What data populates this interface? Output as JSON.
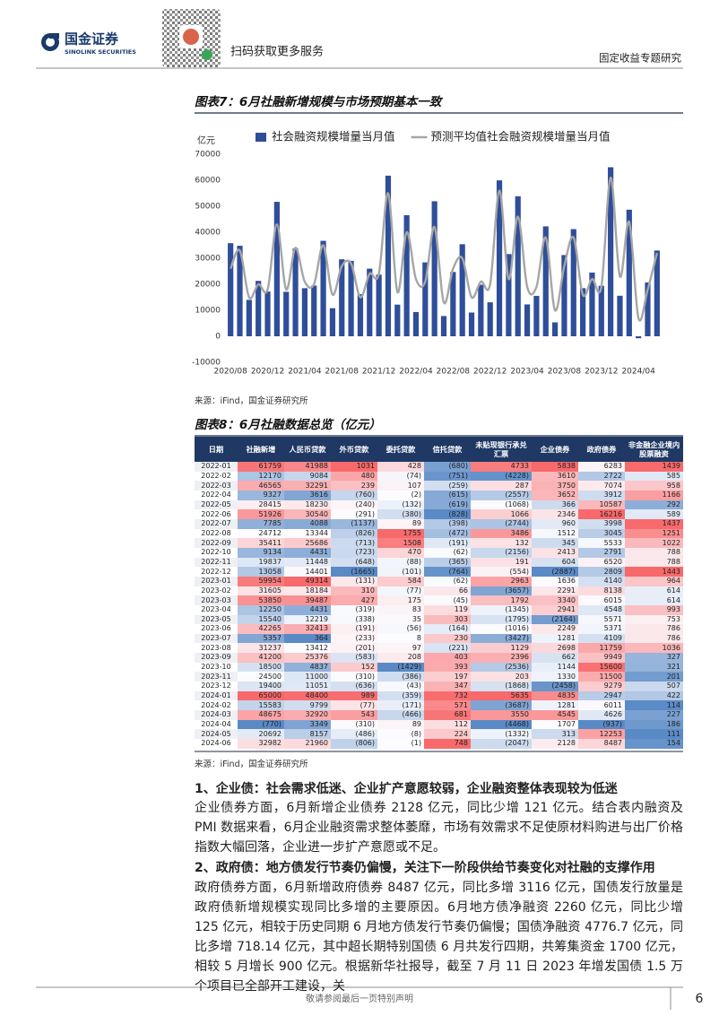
{
  "header": {
    "logo_cn": "国金证券",
    "logo_en": "SINOLINK SECURITIES",
    "qr_text": "扫码获取更多服务",
    "report_type": "固定收益专题研究"
  },
  "chart_data": {
    "type": "bar",
    "title": "图表7：6月社融新增规模与市场预期基本一致",
    "y_label": "亿元",
    "source": "来源：iFind，国金证券研究所",
    "categories": [
      "2020/08",
      null,
      null,
      null,
      "2020/12",
      null,
      null,
      null,
      "2021/04",
      null,
      null,
      null,
      "2021/08",
      null,
      null,
      null,
      "2021/12",
      null,
      null,
      null,
      "2022/04",
      null,
      null,
      null,
      "2022/08",
      null,
      null,
      null,
      "2022/12",
      null,
      null,
      null,
      "2023/04",
      null,
      null,
      null,
      "2023/08",
      null,
      null,
      null,
      "2023/12",
      null,
      null,
      null,
      "2024/04",
      null,
      null
    ],
    "ylim": [
      -10000,
      70000
    ],
    "yticks": [
      -10000,
      0,
      10000,
      20000,
      30000,
      40000,
      50000,
      60000,
      70000
    ],
    "grid": false,
    "legend": "top",
    "series": [
      {
        "name": "社会融资规模增量当月值",
        "type": "bar",
        "color": "#2f4e9a",
        "values": [
          35800,
          34800,
          14000,
          21300,
          17200,
          51700,
          17100,
          33800,
          18500,
          19500,
          36700,
          10800,
          29600,
          29000,
          16200,
          26000,
          23700,
          61759,
          12170,
          46565,
          9327,
          28415,
          51926,
          7785,
          24712,
          35411,
          9134,
          19837,
          13058,
          59954,
          31605,
          53850,
          12250,
          15540,
          42265,
          5357,
          31237,
          41200,
          18500,
          24500,
          19400,
          65000,
          15583,
          48675,
          -770,
          20692,
          32982
        ]
      },
      {
        "name": "预测平均值社会融资规模增量当月值",
        "type": "line",
        "color": "#a6a6a6",
        "values": [
          26000,
          33000,
          15000,
          20000,
          18000,
          43000,
          18000,
          34000,
          21000,
          20000,
          35000,
          16000,
          27000,
          28000,
          15000,
          24000,
          24000,
          55000,
          17000,
          40000,
          22000,
          21000,
          42000,
          13000,
          26000,
          30000,
          15000,
          21000,
          20000,
          56000,
          22000,
          46000,
          19000,
          19000,
          38000,
          10000,
          27000,
          38000,
          16000,
          22000,
          19000,
          61000,
          23000,
          44000,
          7000,
          18000,
          32000
        ]
      }
    ]
  },
  "table": {
    "title": "图表8：6月社融数据总览（亿元）",
    "headers": [
      "日期",
      "社融新增",
      "人民币贷款",
      "外币贷款",
      "委托贷款",
      "信托贷款",
      "未贴现银行承兑汇票",
      "企业债券",
      "政府债券",
      "非金融企业境内股票融资"
    ],
    "rows": [
      [
        "2022-01",
        "61759",
        "41988",
        "1031",
        "428",
        "(680)",
        "4733",
        "5838",
        "6283",
        "1439"
      ],
      [
        "2022-02",
        "12170",
        "9084",
        "480",
        "(74)",
        "(751)",
        "(4228)",
        "3610",
        "2722",
        "585"
      ],
      [
        "2022-03",
        "46565",
        "32291",
        "239",
        "107",
        "(259)",
        "287",
        "3750",
        "7074",
        "958"
      ],
      [
        "2022-04",
        "9327",
        "3616",
        "(760)",
        "(2)",
        "(615)",
        "(2557)",
        "3652",
        "3912",
        "1166"
      ],
      [
        "2022-05",
        "28415",
        "18230",
        "(240)",
        "(132)",
        "(619)",
        "(1068)",
        "366",
        "10587",
        "292"
      ],
      [
        "2022-06",
        "51926",
        "30540",
        "(291)",
        "(380)",
        "(828)",
        "1066",
        "2346",
        "16216",
        "589"
      ],
      [
        "2022-07",
        "7785",
        "4088",
        "(1137)",
        "89",
        "(398)",
        "(2744)",
        "960",
        "3998",
        "1437"
      ],
      [
        "2022-08",
        "24712",
        "13344",
        "(826)",
        "1755",
        "(472)",
        "3486",
        "1512",
        "3045",
        "1251"
      ],
      [
        "2022-09",
        "35411",
        "25686",
        "(713)",
        "1508",
        "(191)",
        "132",
        "345",
        "5533",
        "1022"
      ],
      [
        "2022-10",
        "9134",
        "4431",
        "(723)",
        "470",
        "(62)",
        "(2156)",
        "2413",
        "2791",
        "788"
      ],
      [
        "2022-11",
        "19837",
        "11448",
        "(648)",
        "(88)",
        "(365)",
        "191",
        "604",
        "6520",
        "788"
      ],
      [
        "2022-12",
        "13058",
        "14401",
        "(1665)",
        "(101)",
        "(764)",
        "(554)",
        "(2887)",
        "2809",
        "1443"
      ],
      [
        "2023-01",
        "59954",
        "49314",
        "(131)",
        "584",
        "(62)",
        "2963",
        "1636",
        "4140",
        "964"
      ],
      [
        "2023-02",
        "31605",
        "18184",
        "310",
        "(77)",
        "66",
        "(3657)",
        "2291",
        "8138",
        "614"
      ],
      [
        "2023-03",
        "53850",
        "39487",
        "427",
        "175",
        "(45)",
        "1792",
        "3340",
        "6015",
        "614"
      ],
      [
        "2023-04",
        "12250",
        "4431",
        "(319)",
        "83",
        "119",
        "(1345)",
        "2941",
        "4548",
        "993"
      ],
      [
        "2023-05",
        "15540",
        "12219",
        "(338)",
        "35",
        "303",
        "(1795)",
        "(2164)",
        "5571",
        "753"
      ],
      [
        "2023-06",
        "42265",
        "32413",
        "(191)",
        "(56)",
        "(164)",
        "(1016)",
        "2249",
        "5371",
        "786"
      ],
      [
        "2023-07",
        "5357",
        "364",
        "(233)",
        "8",
        "230",
        "(3427)",
        "1281",
        "4109",
        "786"
      ],
      [
        "2023-08",
        "31237",
        "13412",
        "(201)",
        "97",
        "(221)",
        "1129",
        "2698",
        "11759",
        "1036"
      ],
      [
        "2023-09",
        "41200",
        "25376",
        "(583)",
        "208",
        "403",
        "2396",
        "662",
        "9949",
        "327"
      ],
      [
        "2023-10",
        "18500",
        "4837",
        "152",
        "(1429)",
        "393",
        "(2536)",
        "1144",
        "15600",
        "321"
      ],
      [
        "2023-11",
        "24500",
        "11000",
        "(310)",
        "(386)",
        "197",
        "203",
        "1330",
        "11500",
        "201"
      ],
      [
        "2023-12",
        "19400",
        "11051",
        "(636)",
        "(43)",
        "347",
        "(1868)",
        "(2458)",
        "9279",
        "507"
      ],
      [
        "2024-01",
        "65000",
        "48400",
        "989",
        "(359)",
        "732",
        "5635",
        "4835",
        "2947",
        "422"
      ],
      [
        "2024-02",
        "15583",
        "9799",
        "(77)",
        "(171)",
        "571",
        "(3687)",
        "1281",
        "6011",
        "114"
      ],
      [
        "2024-03",
        "48675",
        "32920",
        "543",
        "(466)",
        "681",
        "3550",
        "4545",
        "4626",
        "227"
      ],
      [
        "2024-04",
        "(770)",
        "3349",
        "(310)",
        "89",
        "112",
        "(4468)",
        "1707",
        "(937)",
        "186"
      ],
      [
        "2024-05",
        "20692",
        "8157",
        "(486)",
        "(8)",
        "224",
        "(1332)",
        "313",
        "12253",
        "111"
      ],
      [
        "2024-06",
        "32982",
        "21960",
        "(806)",
        "(1)",
        "748",
        "(2047)",
        "2128",
        "8487",
        "154"
      ]
    ],
    "source": "来源：iFind，国金证券研究所"
  },
  "sections": [
    {
      "heading": "1、企业债：社会需求低迷、企业扩产意愿较弱，企业融资整体表现较为低迷",
      "body": "企业债券方面，6月新增企业债券 2128 亿元，同比少增 121 亿元。结合表内融资及 PMI 数据来看，6月企业融资需求整体萎靡，市场有效需求不足使原材料购进与出厂价格指数大幅回落，企业进一步扩产意愿或不足。"
    },
    {
      "heading": "2、政府债：地方债发行节奏仍偏慢，关注下一阶段供给节奏变化对社融的支撑作用",
      "body": "政府债券方面，6月新增政府债券 8487 亿元，同比多增 3116 亿元，国债发行放量是政府债新增规模实现同比多增的主要原因。6月地方债净融资 2260 亿元，同比少增 125 亿元，相较于历史同期 6 月地方债发行节奏仍偏慢；国债净融资 4776.7 亿元，同比多增 718.14 亿元，其中超长期特别国债 6 月共发行四期，共筹集资金 1700 亿元，相较 5 月增长 900 亿元。根据新华社报导，截至 7 月 11 日 2023 年增发国债 1.5 万个项目已全部开工建设，关"
    }
  ],
  "footer": {
    "disclaimer": "敬请参阅最后一页特别声明",
    "page_number": "6"
  }
}
